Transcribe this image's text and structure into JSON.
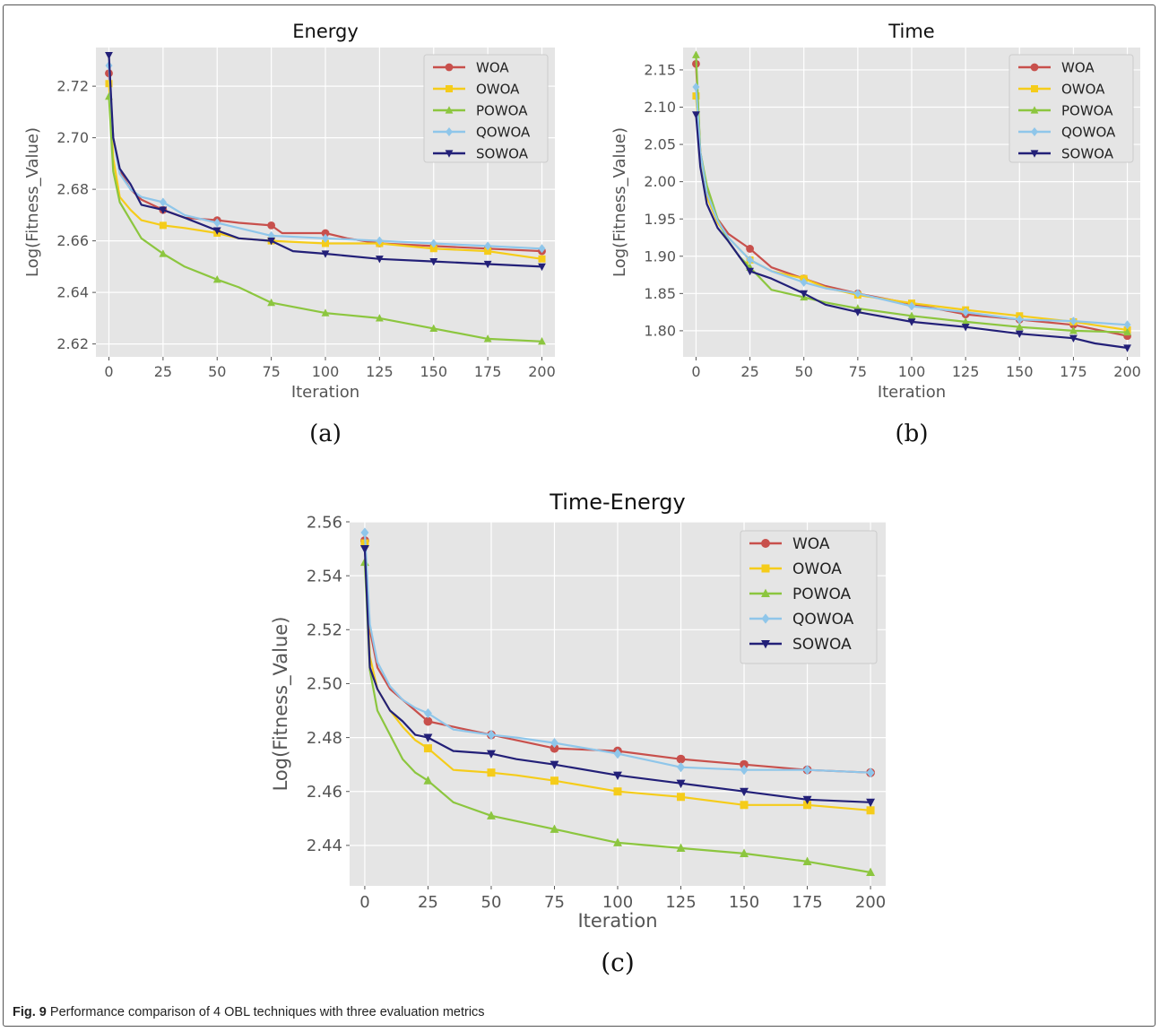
{
  "caption": {
    "label": "Fig. 9",
    "text": "Performance comparison of 4 OBL techniques with three evaluation metrics"
  },
  "colors": {
    "WOA": "#c8504c",
    "OWOA": "#f5cc1a",
    "POWOA": "#8cc63f",
    "QOWOA": "#8fc6ea",
    "SOWOA": "#232078"
  },
  "chart_data": [
    {
      "type": "line",
      "title": "Energy",
      "sublabel": "(a)",
      "xlabel": "Iteration",
      "ylabel": "Log(Fitness_Value)",
      "xlim": [
        -6,
        206
      ],
      "ylim": [
        2.615,
        2.735
      ],
      "xticks": [
        0,
        25,
        50,
        75,
        100,
        125,
        150,
        175,
        200
      ],
      "yticks": [
        2.62,
        2.64,
        2.66,
        2.68,
        2.7,
        2.72
      ],
      "ytick_labels": [
        "2.62",
        "2.64",
        "2.66",
        "2.68",
        "2.70",
        "2.72"
      ],
      "grid": true,
      "legend": "top-right",
      "series": [
        {
          "name": "WOA",
          "x": [
            0,
            2,
            5,
            10,
            15,
            25,
            35,
            50,
            60,
            75,
            80,
            100,
            110,
            125,
            150,
            175,
            200
          ],
          "y": [
            2.725,
            2.7,
            2.687,
            2.68,
            2.676,
            2.672,
            2.669,
            2.668,
            2.667,
            2.666,
            2.663,
            2.663,
            2.661,
            2.659,
            2.658,
            2.657,
            2.656
          ]
        },
        {
          "name": "OWOA",
          "x": [
            0,
            2,
            5,
            10,
            15,
            25,
            35,
            50,
            60,
            75,
            100,
            125,
            150,
            175,
            200
          ],
          "y": [
            2.721,
            2.692,
            2.677,
            2.672,
            2.668,
            2.666,
            2.665,
            2.663,
            2.661,
            2.66,
            2.659,
            2.659,
            2.657,
            2.656,
            2.653
          ]
        },
        {
          "name": "POWOA",
          "x": [
            0,
            2,
            5,
            10,
            15,
            25,
            35,
            50,
            60,
            75,
            100,
            125,
            150,
            175,
            200
          ],
          "y": [
            2.716,
            2.687,
            2.675,
            2.668,
            2.661,
            2.655,
            2.65,
            2.645,
            2.642,
            2.636,
            2.632,
            2.63,
            2.626,
            2.622,
            2.621
          ]
        },
        {
          "name": "QOWOA",
          "x": [
            0,
            2,
            5,
            10,
            15,
            25,
            35,
            50,
            60,
            75,
            100,
            125,
            150,
            175,
            200
          ],
          "y": [
            2.728,
            2.7,
            2.686,
            2.68,
            2.677,
            2.675,
            2.67,
            2.667,
            2.665,
            2.662,
            2.661,
            2.66,
            2.659,
            2.658,
            2.657
          ]
        },
        {
          "name": "SOWOA",
          "x": [
            0,
            2,
            5,
            10,
            15,
            25,
            35,
            50,
            60,
            75,
            85,
            100,
            125,
            150,
            175,
            200
          ],
          "y": [
            2.732,
            2.7,
            2.688,
            2.682,
            2.674,
            2.672,
            2.669,
            2.664,
            2.661,
            2.66,
            2.656,
            2.655,
            2.653,
            2.652,
            2.651,
            2.65
          ]
        }
      ]
    },
    {
      "type": "line",
      "title": "Time",
      "sublabel": "(b)",
      "xlabel": "Iteration",
      "ylabel": "Log(Fitness_Value)",
      "xlim": [
        -6,
        206
      ],
      "ylim": [
        1.765,
        2.18
      ],
      "xticks": [
        0,
        25,
        50,
        75,
        100,
        125,
        150,
        175,
        200
      ],
      "yticks": [
        1.8,
        1.85,
        1.9,
        1.95,
        2.0,
        2.05,
        2.1,
        2.15
      ],
      "ytick_labels": [
        "1.80",
        "1.85",
        "1.90",
        "1.95",
        "2.00",
        "2.05",
        "2.10",
        "2.15"
      ],
      "grid": true,
      "legend": "top-right",
      "series": [
        {
          "name": "WOA",
          "x": [
            0,
            2,
            5,
            10,
            15,
            20,
            25,
            35,
            50,
            60,
            75,
            100,
            125,
            150,
            175,
            200
          ],
          "y": [
            2.158,
            2.04,
            1.99,
            1.95,
            1.93,
            1.92,
            1.91,
            1.885,
            1.87,
            1.86,
            1.85,
            1.836,
            1.822,
            1.815,
            1.808,
            1.793
          ]
        },
        {
          "name": "OWOA",
          "x": [
            0,
            2,
            5,
            10,
            15,
            20,
            25,
            35,
            50,
            60,
            75,
            100,
            125,
            150,
            175,
            200
          ],
          "y": [
            2.115,
            2.04,
            1.98,
            1.945,
            1.925,
            1.91,
            1.895,
            1.88,
            1.87,
            1.858,
            1.848,
            1.837,
            1.828,
            1.82,
            1.812,
            1.801
          ]
        },
        {
          "name": "POWOA",
          "x": [
            0,
            2,
            5,
            10,
            15,
            20,
            25,
            35,
            50,
            60,
            75,
            100,
            125,
            150,
            175,
            200
          ],
          "y": [
            2.17,
            2.04,
            1.995,
            1.95,
            1.92,
            1.9,
            1.885,
            1.855,
            1.845,
            1.838,
            1.83,
            1.82,
            1.812,
            1.805,
            1.8,
            1.798
          ]
        },
        {
          "name": "QOWOA",
          "x": [
            0,
            2,
            5,
            10,
            15,
            20,
            25,
            35,
            50,
            60,
            75,
            100,
            125,
            150,
            175,
            200
          ],
          "y": [
            2.127,
            2.04,
            1.985,
            1.948,
            1.925,
            1.91,
            1.895,
            1.88,
            1.865,
            1.857,
            1.85,
            1.833,
            1.825,
            1.815,
            1.813,
            1.808
          ]
        },
        {
          "name": "SOWOA",
          "x": [
            0,
            2,
            5,
            10,
            15,
            20,
            25,
            35,
            50,
            60,
            75,
            100,
            125,
            150,
            175,
            185,
            200
          ],
          "y": [
            2.09,
            2.02,
            1.97,
            1.938,
            1.92,
            1.9,
            1.88,
            1.87,
            1.85,
            1.835,
            1.825,
            1.812,
            1.805,
            1.796,
            1.79,
            1.783,
            1.777
          ]
        }
      ]
    },
    {
      "type": "line",
      "title": "Time-Energy",
      "sublabel": "(c)",
      "xlabel": "Iteration",
      "ylabel": "Log(Fitness_Value)",
      "xlim": [
        -6,
        206
      ],
      "ylim": [
        2.425,
        2.56
      ],
      "xticks": [
        0,
        25,
        50,
        75,
        100,
        125,
        150,
        175,
        200
      ],
      "yticks": [
        2.44,
        2.46,
        2.48,
        2.5,
        2.52,
        2.54,
        2.56
      ],
      "ytick_labels": [
        "2.44",
        "2.46",
        "2.48",
        "2.50",
        "2.52",
        "2.54",
        "2.56"
      ],
      "grid": true,
      "legend": "top-right",
      "series": [
        {
          "name": "WOA",
          "x": [
            0,
            2,
            5,
            10,
            15,
            20,
            25,
            35,
            50,
            60,
            75,
            100,
            125,
            150,
            175,
            200
          ],
          "y": [
            2.553,
            2.52,
            2.506,
            2.498,
            2.494,
            2.49,
            2.486,
            2.484,
            2.481,
            2.479,
            2.476,
            2.475,
            2.472,
            2.47,
            2.468,
            2.467
          ]
        },
        {
          "name": "OWOA",
          "x": [
            0,
            2,
            5,
            10,
            15,
            20,
            25,
            35,
            50,
            60,
            75,
            100,
            125,
            150,
            175,
            200
          ],
          "y": [
            2.552,
            2.51,
            2.498,
            2.49,
            2.484,
            2.479,
            2.476,
            2.468,
            2.467,
            2.466,
            2.464,
            2.46,
            2.458,
            2.455,
            2.455,
            2.453
          ]
        },
        {
          "name": "POWOA",
          "x": [
            0,
            2,
            5,
            10,
            15,
            20,
            25,
            35,
            50,
            60,
            75,
            100,
            125,
            150,
            175,
            200
          ],
          "y": [
            2.545,
            2.505,
            2.49,
            2.481,
            2.472,
            2.467,
            2.464,
            2.456,
            2.451,
            2.449,
            2.446,
            2.441,
            2.439,
            2.437,
            2.434,
            2.43
          ]
        },
        {
          "name": "QOWOA",
          "x": [
            0,
            2,
            5,
            10,
            15,
            20,
            25,
            35,
            50,
            60,
            75,
            100,
            125,
            150,
            175,
            200
          ],
          "y": [
            2.556,
            2.522,
            2.508,
            2.499,
            2.494,
            2.491,
            2.489,
            2.483,
            2.481,
            2.48,
            2.478,
            2.474,
            2.469,
            2.468,
            2.468,
            2.467
          ]
        },
        {
          "name": "SOWOA",
          "x": [
            0,
            2,
            5,
            10,
            15,
            20,
            25,
            35,
            50,
            60,
            75,
            100,
            125,
            150,
            175,
            200
          ],
          "y": [
            2.55,
            2.506,
            2.498,
            2.49,
            2.486,
            2.481,
            2.48,
            2.475,
            2.474,
            2.472,
            2.47,
            2.466,
            2.463,
            2.46,
            2.457,
            2.456
          ]
        }
      ]
    }
  ]
}
